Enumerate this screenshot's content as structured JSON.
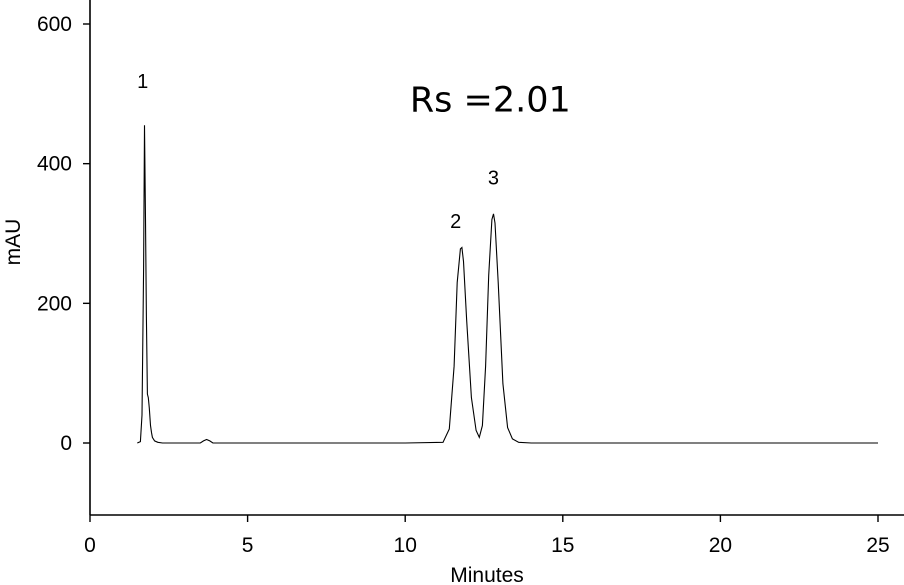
{
  "chart_data": {
    "type": "line",
    "title": "",
    "xlabel": "Minutes",
    "ylabel": "mAU",
    "xlim": [
      0,
      25
    ],
    "ylim": [
      -100,
      650
    ],
    "x_ticks": [
      0,
      5,
      10,
      15,
      20,
      25
    ],
    "y_ticks": [
      0,
      200,
      400,
      600
    ],
    "grid": false,
    "annotations": [
      {
        "text": "Rs =2.01",
        "x": 12.7,
        "y": 475
      },
      {
        "text": "1",
        "x": 1.67,
        "y": 508
      },
      {
        "text": "2",
        "x": 11.6,
        "y": 308
      },
      {
        "text": "3",
        "x": 12.8,
        "y": 370
      }
    ],
    "series": [
      {
        "x": [
          1.5,
          1.6,
          1.65,
          1.7,
          1.73,
          1.76,
          1.79,
          1.82,
          1.85,
          1.88,
          1.92,
          1.95,
          1.98,
          2.05,
          2.15,
          2.3,
          2.5,
          3.0,
          3.5,
          3.6,
          3.7,
          3.8,
          3.9,
          4.5,
          6,
          8,
          10,
          11.2,
          11.4,
          11.55,
          11.65,
          11.75,
          11.8,
          11.85,
          11.95,
          12.1,
          12.25,
          12.35,
          12.45,
          12.55,
          12.65,
          12.75,
          12.8,
          12.85,
          12.95,
          13.1,
          13.25,
          13.4,
          13.6,
          14,
          16,
          18,
          20,
          22,
          25
        ],
        "y": [
          0,
          2,
          40,
          250,
          455,
          320,
          180,
          70,
          65,
          50,
          25,
          15,
          8,
          3,
          1,
          0,
          0,
          0,
          0,
          3,
          5,
          3,
          0,
          0,
          0,
          0,
          0,
          1,
          20,
          110,
          230,
          278,
          280,
          260,
          175,
          65,
          18,
          8,
          25,
          110,
          240,
          320,
          328,
          315,
          230,
          85,
          22,
          6,
          1,
          0,
          0,
          0,
          0,
          0,
          0
        ]
      }
    ]
  }
}
